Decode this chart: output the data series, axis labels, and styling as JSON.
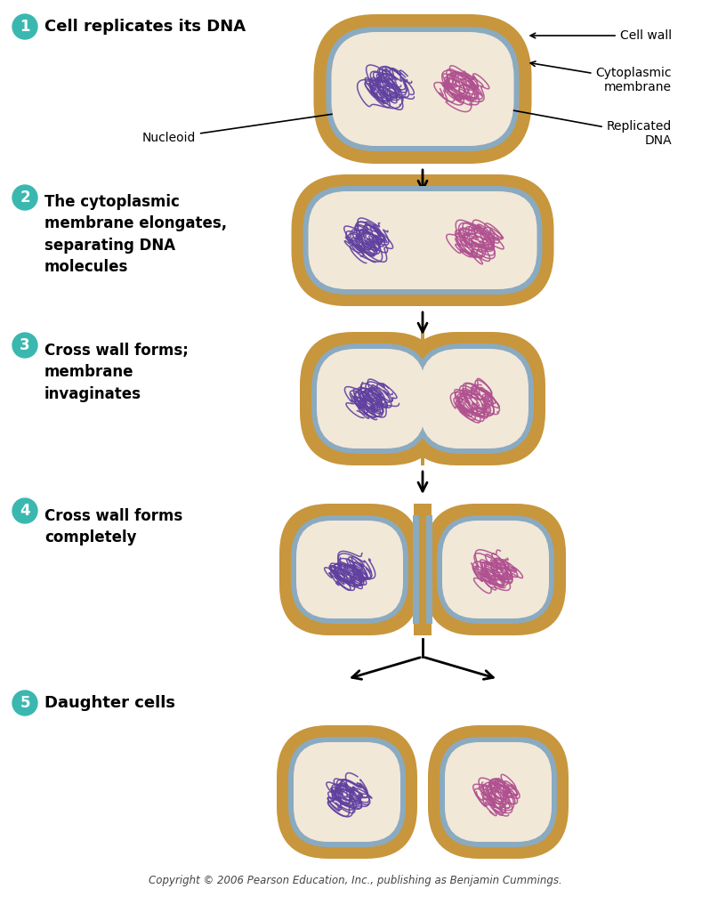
{
  "bg_color": "#ffffff",
  "cell_wall_color": "#c8963c",
  "cell_membrane_color": "#8aaac0",
  "cytoplasm_color": "#f2e8d8",
  "dna_color_left": "#6040a0",
  "dna_color_right": "#b05090",
  "label_color": "#000000",
  "step_circle_color": "#3ab8b0",
  "step_text_color": "#ffffff",
  "arrow_color": "#000000",
  "copyright_text": "Copyright © 2006 Pearson Education, Inc., publishing as Benjamin Cummings.",
  "step1_label": "Cell replicates its DNA",
  "step2_label": "The cytoplasmic\nmembrane elongates,\nseparating DNA\nmolecules",
  "step3_label": "Cross wall forms;\nmembrane\ninvaginates",
  "step4_label": "Cross wall forms\ncompletely",
  "step5_label": "Daughter cells",
  "ann_cell_wall": "Cell wall",
  "ann_cyto_mem": "Cytoplasmic\nmembrane",
  "ann_rep_dna": "Replicated\nDNA",
  "ann_nucleoid": "Nucleoid"
}
